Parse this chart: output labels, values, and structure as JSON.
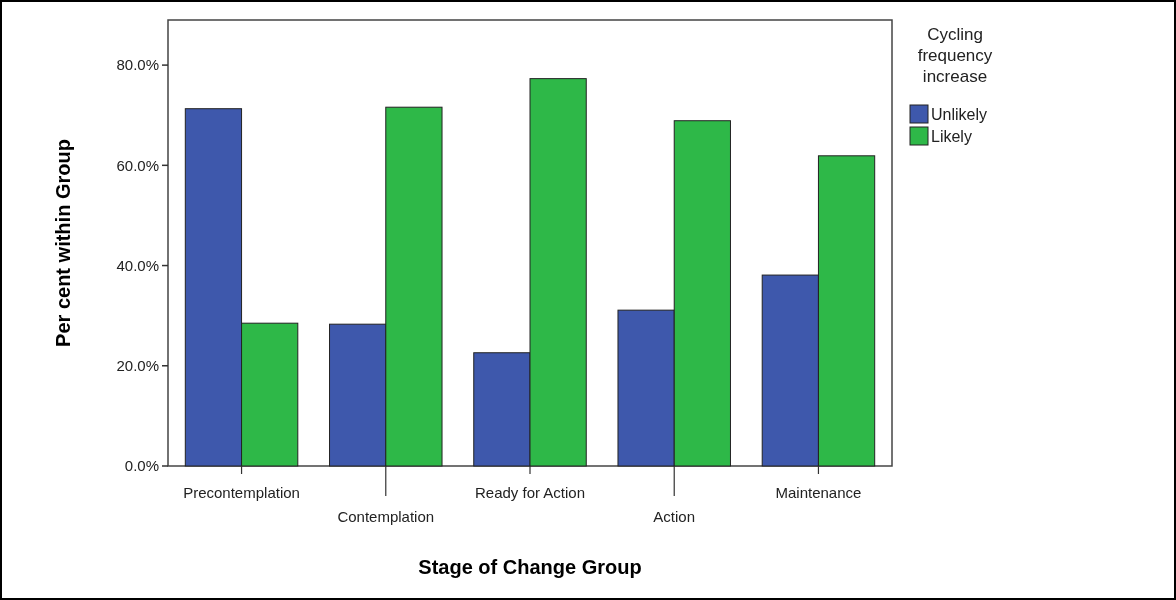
{
  "chart_data": {
    "type": "bar",
    "xlabel": "Stage of Change Group",
    "ylabel": "Per cent within Group",
    "legend_title": "Cycling frequency increase",
    "categories": [
      "Precontemplation",
      "Contemplation",
      "Ready for Action",
      "Action",
      "Maintenance"
    ],
    "series": [
      {
        "name": "Unlikely",
        "color": "#3e58ac",
        "values": [
          71.3,
          28.3,
          22.6,
          31.1,
          38.1
        ]
      },
      {
        "name": "Likely",
        "color": "#2eb848",
        "values": [
          28.5,
          71.6,
          77.3,
          68.9,
          61.9
        ]
      }
    ],
    "ylim": [
      0,
      89
    ],
    "yticks": [
      {
        "value": 0,
        "label": "0.0%"
      },
      {
        "value": 20,
        "label": "20.0%"
      },
      {
        "value": 40,
        "label": "40.0%"
      },
      {
        "value": 60,
        "label": "60.0%"
      },
      {
        "value": 80,
        "label": "80.0%"
      }
    ],
    "grid": false,
    "legend": "right"
  }
}
